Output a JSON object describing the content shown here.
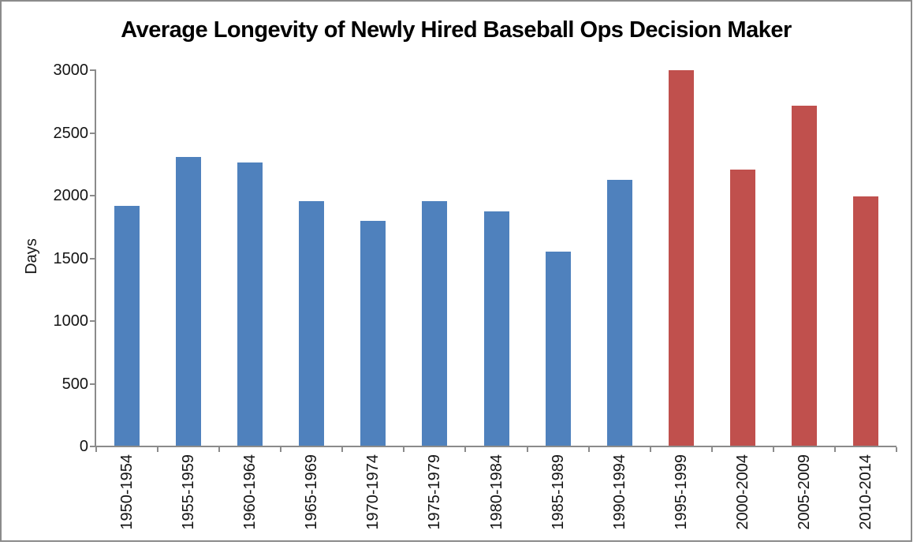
{
  "window": {
    "background_color": "#ffffff",
    "frame_border_color": "#8b8b8b"
  },
  "chart_data": {
    "type": "bar",
    "title": "Average Longevity of Newly Hired Baseball Ops Decision Maker",
    "xlabel": "",
    "ylabel": "Days",
    "categories": [
      "1950-1954",
      "1955-1959",
      "1960-1964",
      "1965-1969",
      "1970-1974",
      "1975-1979",
      "1980-1984",
      "1985-1989",
      "1990-1994",
      "1995-1999",
      "2000-2004",
      "2005-2009",
      "2010-2014"
    ],
    "values": [
      1910,
      2300,
      2260,
      1950,
      1790,
      1950,
      1870,
      1550,
      2120,
      2995,
      2200,
      2710,
      1990
    ],
    "bar_colors": [
      "#4F81BD",
      "#4F81BD",
      "#4F81BD",
      "#4F81BD",
      "#4F81BD",
      "#4F81BD",
      "#4F81BD",
      "#4F81BD",
      "#4F81BD",
      "#C0504D",
      "#C0504D",
      "#C0504D",
      "#C0504D"
    ],
    "color_legend": {
      "blue": "#4F81BD",
      "red": "#C0504D"
    },
    "ylim": [
      0,
      3000
    ],
    "yticks": [
      0,
      500,
      1000,
      1500,
      2000,
      2500,
      3000
    ],
    "ytick_interval": 500,
    "x_tick_label_rotation": 90,
    "grid": false,
    "legend_position": "none",
    "axis_color": "#8b8b8b"
  }
}
